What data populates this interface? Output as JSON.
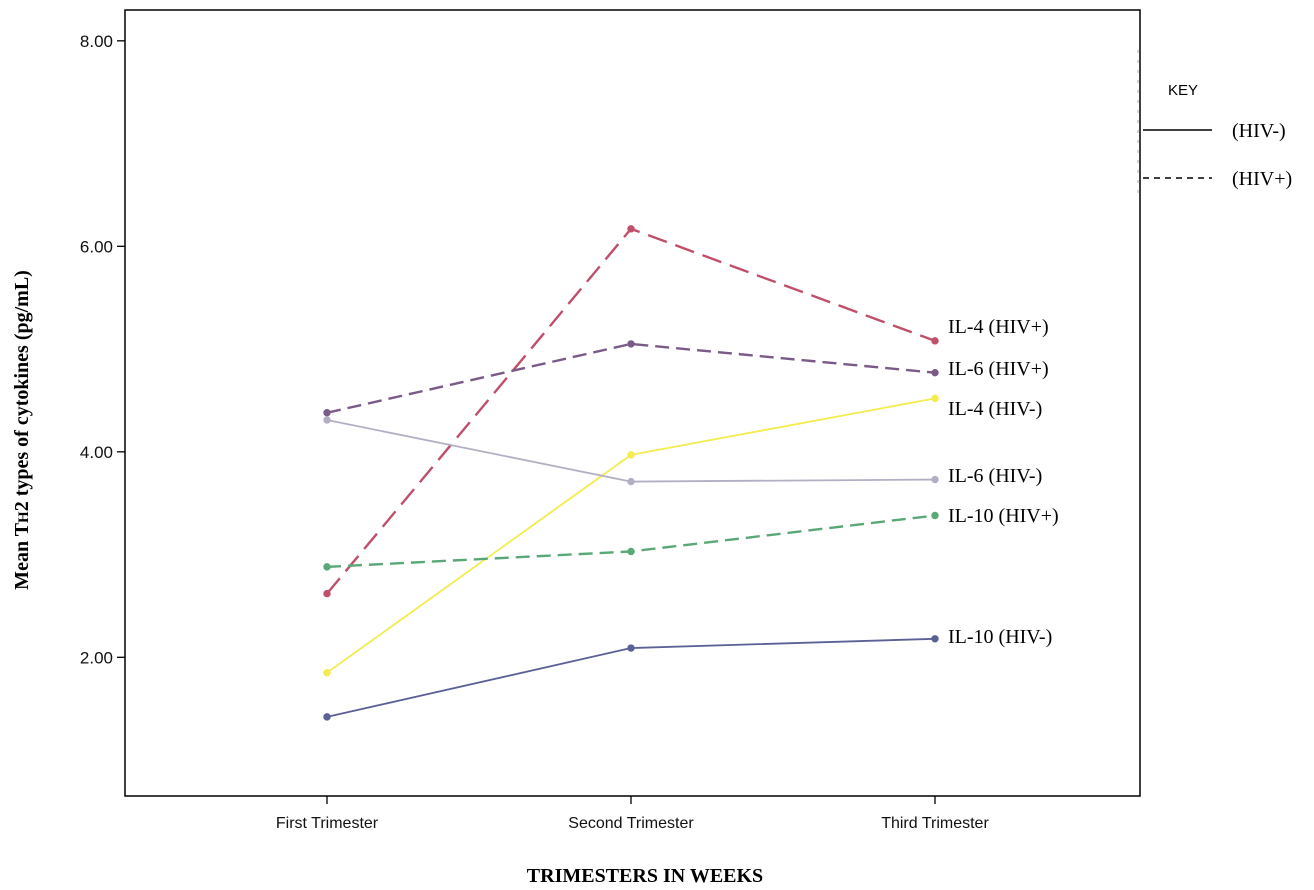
{
  "chart_data": {
    "type": "line",
    "title": "",
    "xlabel": "TRIMESTERS IN WEEKS",
    "ylabel_main": "Mean T",
    "ylabel_sub": "H",
    "ylabel_rest": "2 types of cytokines (pg/mL)",
    "categories": [
      "First Trimester",
      "Second Trimester",
      "Third Trimester"
    ],
    "ylim": [
      0.65,
      8.3
    ],
    "yticks": [
      2.0,
      4.0,
      6.0,
      8.0
    ],
    "ytick_labels": [
      "2.00",
      "4.00",
      "6.00",
      "8.00"
    ],
    "grid": false,
    "series": [
      {
        "name": "IL-4 (HIV+)",
        "values": [
          2.62,
          6.17,
          5.08
        ],
        "color": "#c0506a",
        "dash": "dashed-long"
      },
      {
        "name": "IL-6 (HIV+)",
        "values": [
          4.38,
          5.05,
          4.77
        ],
        "color": "#7a5a86",
        "dash": "dashed"
      },
      {
        "name": "IL-4 (HIV-)",
        "values": [
          1.85,
          3.97,
          4.52
        ],
        "color": "#f2ec4e",
        "dash": "solid"
      },
      {
        "name": "IL-6 (HIV-)",
        "values": [
          4.31,
          3.71,
          3.73
        ],
        "color": "#b4aec4",
        "dash": "solid"
      },
      {
        "name": "IL-10 (HIV+)",
        "values": [
          2.88,
          3.03,
          3.38
        ],
        "color": "#5aa878",
        "dash": "dashed"
      },
      {
        "name": "IL-10 (HIV-)",
        "values": [
          1.42,
          2.09,
          2.18
        ],
        "color": "#5b6196",
        "dash": "solid"
      }
    ],
    "legend": {
      "placement": "top-right",
      "title": "KEY",
      "items": [
        {
          "label": "(HIV-)",
          "dash": "solid"
        },
        {
          "label": "(HIV+)",
          "dash": "dashed"
        }
      ]
    }
  }
}
